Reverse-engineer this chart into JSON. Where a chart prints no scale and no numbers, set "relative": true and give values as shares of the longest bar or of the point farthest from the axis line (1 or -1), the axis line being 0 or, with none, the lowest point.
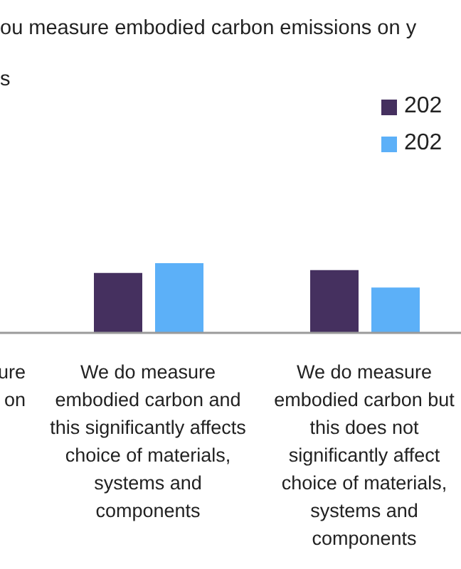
{
  "chart_data": {
    "type": "bar",
    "title": "ou measure embodied carbon emissions on y",
    "subtitle": "s",
    "categories": [
      "ure\non",
      "We do measure\nembodied carbon and\nthis significantly affects\nchoice of materials,\nsystems and\ncomponents",
      "We do measure\nembodied carbon but\nthis does not\nsignificantly affect\nchoice of materials,\nsystems and\ncomponents"
    ],
    "series": [
      {
        "name": "202",
        "color": "#45305f",
        "values": [
          null,
          0.86,
          0.9
        ]
      },
      {
        "name": "202",
        "color": "#5cb0f8",
        "values": [
          null,
          1,
          0.65
        ]
      }
    ],
    "relative": true,
    "legend": "top right"
  }
}
